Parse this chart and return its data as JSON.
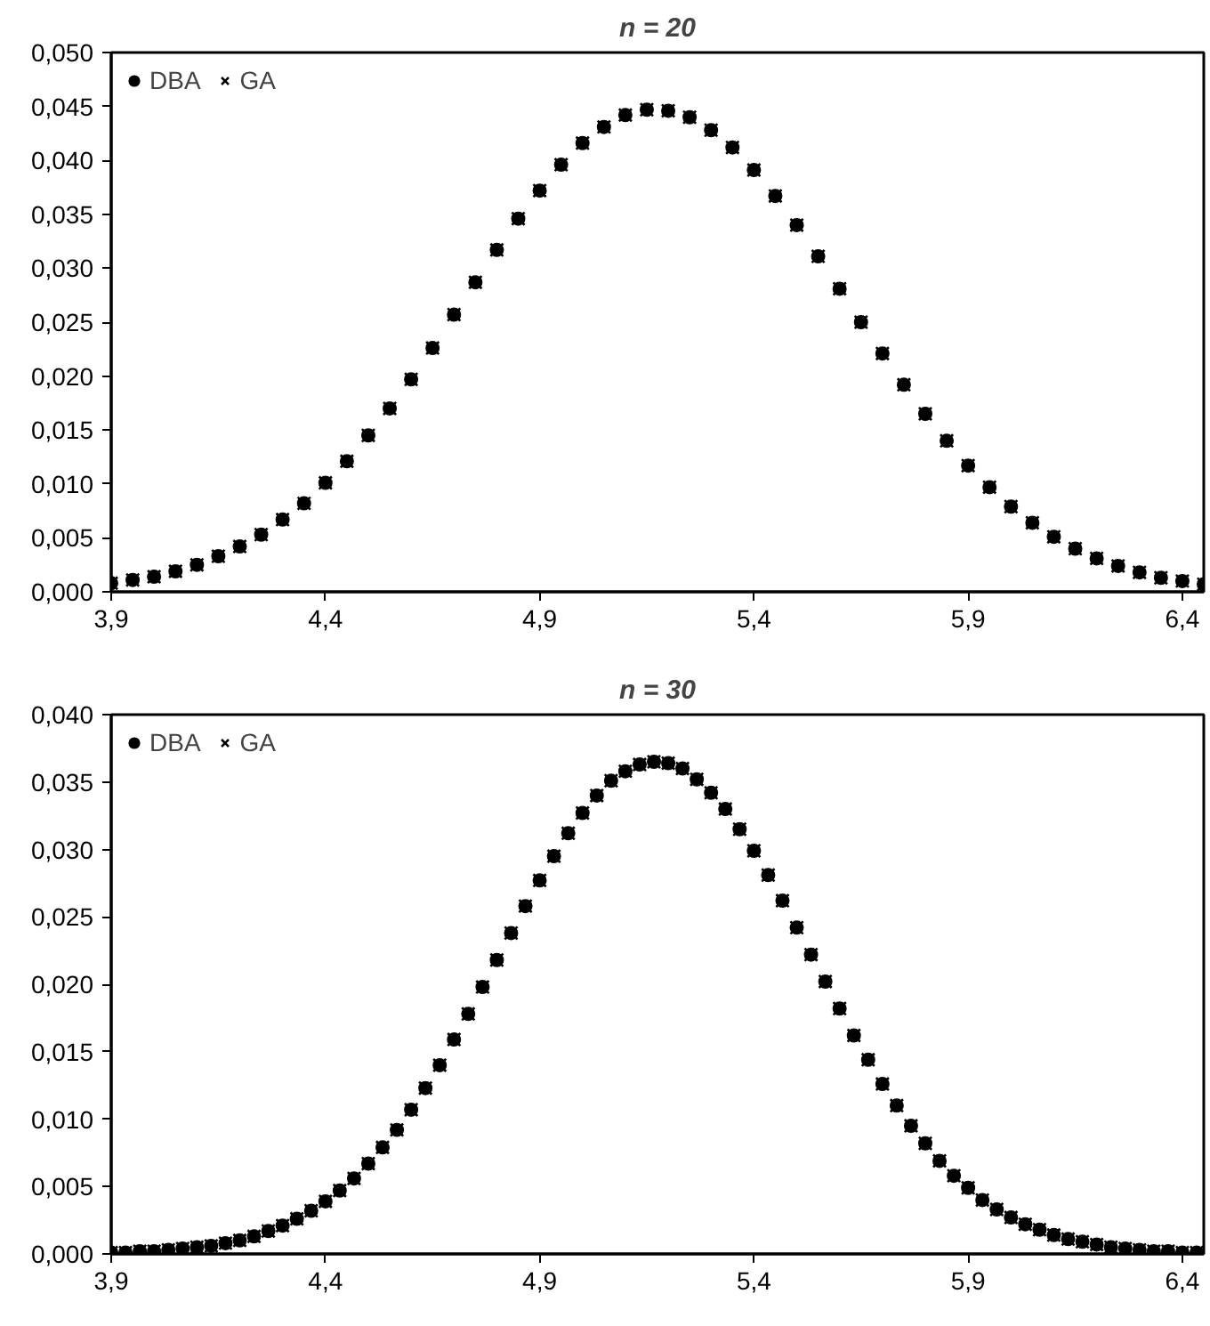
{
  "chart_data": [
    {
      "type": "scatter",
      "title": "n = 20",
      "legend": "top left",
      "grid": false,
      "xlim": [
        3.9,
        6.45
      ],
      "ylim": [
        0,
        0.05
      ],
      "xticks": [
        {
          "value": 3.9,
          "label": "3,9"
        },
        {
          "value": 4.4,
          "label": "4,4"
        },
        {
          "value": 4.9,
          "label": "4,9"
        },
        {
          "value": 5.4,
          "label": "5,4"
        },
        {
          "value": 5.9,
          "label": "5,9"
        },
        {
          "value": 6.4,
          "label": "6,4"
        }
      ],
      "yticks": [
        {
          "value": 0,
          "label": "0,000"
        },
        {
          "value": 0.005,
          "label": "0,005"
        },
        {
          "value": 0.01,
          "label": "0,010"
        },
        {
          "value": 0.015,
          "label": "0,015"
        },
        {
          "value": 0.02,
          "label": "0,020"
        },
        {
          "value": 0.025,
          "label": "0,025"
        },
        {
          "value": 0.03,
          "label": "0,030"
        },
        {
          "value": 0.035,
          "label": "0,035"
        },
        {
          "value": 0.04,
          "label": "0,040"
        },
        {
          "value": 0.045,
          "label": "0,045"
        },
        {
          "value": 0.05,
          "label": "0,050"
        }
      ],
      "x": [
        3.9,
        3.95,
        4.0,
        4.05,
        4.1,
        4.15,
        4.2,
        4.25,
        4.3,
        4.35,
        4.4,
        4.45,
        4.5,
        4.55,
        4.6,
        4.65,
        4.7,
        4.75,
        4.8,
        4.85,
        4.9,
        4.95,
        5.0,
        5.05,
        5.1,
        5.15,
        5.2,
        5.25,
        5.3,
        5.35,
        5.4,
        5.45,
        5.5,
        5.55,
        5.6,
        5.65,
        5.7,
        5.75,
        5.8,
        5.85,
        5.9,
        5.95,
        6.0,
        6.05,
        6.1,
        6.15,
        6.2,
        6.25,
        6.3,
        6.35,
        6.4,
        6.45
      ],
      "series": [
        {
          "name": "DBA",
          "color": "#000000",
          "marker": "circle",
          "values": [
            0.0008,
            0.0011,
            0.0014,
            0.0019,
            0.0025,
            0.0033,
            0.0042,
            0.0053,
            0.0067,
            0.0082,
            0.0101,
            0.0121,
            0.0145,
            0.017,
            0.0197,
            0.0226,
            0.0257,
            0.0287,
            0.0317,
            0.0346,
            0.0372,
            0.0396,
            0.0416,
            0.0431,
            0.0442,
            0.0447,
            0.0446,
            0.044,
            0.0428,
            0.0412,
            0.0391,
            0.0367,
            0.034,
            0.0311,
            0.0281,
            0.025,
            0.0221,
            0.0192,
            0.0165,
            0.014,
            0.0117,
            0.0097,
            0.0079,
            0.0064,
            0.0051,
            0.004,
            0.0031,
            0.0024,
            0.0018,
            0.0013,
            0.001,
            0.0007
          ]
        },
        {
          "name": "GA",
          "color": "#000000",
          "marker": "cross",
          "values": [
            0.0008,
            0.0011,
            0.0014,
            0.0019,
            0.0025,
            0.0033,
            0.0042,
            0.0053,
            0.0067,
            0.0082,
            0.0101,
            0.0121,
            0.0145,
            0.017,
            0.0197,
            0.0226,
            0.0257,
            0.0287,
            0.0317,
            0.0346,
            0.0372,
            0.0396,
            0.0416,
            0.0431,
            0.0442,
            0.0447,
            0.0446,
            0.044,
            0.0428,
            0.0412,
            0.0391,
            0.0367,
            0.034,
            0.0311,
            0.0281,
            0.025,
            0.0221,
            0.0192,
            0.0165,
            0.014,
            0.0117,
            0.0097,
            0.0079,
            0.0064,
            0.0051,
            0.004,
            0.0031,
            0.0024,
            0.0018,
            0.0013,
            0.001,
            0.0007
          ]
        }
      ]
    },
    {
      "type": "scatter",
      "title": "n = 30",
      "legend": "top left",
      "grid": false,
      "xlim": [
        3.9,
        6.45
      ],
      "ylim": [
        0,
        0.04
      ],
      "xticks": [
        {
          "value": 3.9,
          "label": "3,9"
        },
        {
          "value": 4.4,
          "label": "4,4"
        },
        {
          "value": 4.9,
          "label": "4,9"
        },
        {
          "value": 5.4,
          "label": "5,4"
        },
        {
          "value": 5.9,
          "label": "5,9"
        },
        {
          "value": 6.4,
          "label": "6,4"
        }
      ],
      "yticks": [
        {
          "value": 0,
          "label": "0,000"
        },
        {
          "value": 0.005,
          "label": "0,005"
        },
        {
          "value": 0.01,
          "label": "0,010"
        },
        {
          "value": 0.015,
          "label": "0,015"
        },
        {
          "value": 0.02,
          "label": "0,020"
        },
        {
          "value": 0.025,
          "label": "0,025"
        },
        {
          "value": 0.03,
          "label": "0,030"
        },
        {
          "value": 0.035,
          "label": "0,035"
        },
        {
          "value": 0.04,
          "label": "0,040"
        }
      ],
      "x": [
        3.9,
        3.9333,
        3.9667,
        4.0,
        4.0333,
        4.0667,
        4.1,
        4.1333,
        4.1667,
        4.2,
        4.2333,
        4.2667,
        4.3,
        4.3333,
        4.3667,
        4.4,
        4.4333,
        4.4667,
        4.5,
        4.5333,
        4.5667,
        4.6,
        4.6333,
        4.6667,
        4.7,
        4.7333,
        4.7667,
        4.8,
        4.8333,
        4.8667,
        4.9,
        4.9333,
        4.9667,
        5.0,
        5.0333,
        5.0667,
        5.1,
        5.1333,
        5.1667,
        5.2,
        5.2333,
        5.2667,
        5.3,
        5.3333,
        5.3667,
        5.4,
        5.4333,
        5.4667,
        5.5,
        5.5333,
        5.5667,
        5.6,
        5.6333,
        5.6667,
        5.7,
        5.7333,
        5.7667,
        5.8,
        5.8333,
        5.8667,
        5.9,
        5.9333,
        5.9667,
        6.0,
        6.0333,
        6.0667,
        6.1,
        6.1333,
        6.1667,
        6.2,
        6.2333,
        6.2667,
        6.3,
        6.3333,
        6.3667,
        6.4,
        6.4333
      ],
      "series": [
        {
          "name": "DBA",
          "color": "#000000",
          "marker": "circle",
          "values": [
            0.0001,
            0.0001,
            0.0002,
            0.0002,
            0.0003,
            0.0004,
            0.0005,
            0.0006,
            0.0008,
            0.001,
            0.0013,
            0.0017,
            0.0021,
            0.0026,
            0.0032,
            0.0039,
            0.0047,
            0.0056,
            0.0067,
            0.0079,
            0.0092,
            0.0107,
            0.0123,
            0.014,
            0.0159,
            0.0178,
            0.0198,
            0.0218,
            0.0238,
            0.0258,
            0.0277,
            0.0295,
            0.0312,
            0.0327,
            0.034,
            0.0351,
            0.0358,
            0.0363,
            0.0365,
            0.0364,
            0.036,
            0.0352,
            0.0342,
            0.033,
            0.0315,
            0.0299,
            0.0281,
            0.0262,
            0.0242,
            0.0222,
            0.0202,
            0.0182,
            0.0162,
            0.0144,
            0.0126,
            0.011,
            0.0095,
            0.0082,
            0.0069,
            0.0058,
            0.0049,
            0.004,
            0.0033,
            0.0027,
            0.0022,
            0.0018,
            0.0014,
            0.0011,
            0.0009,
            0.0007,
            0.0005,
            0.0004,
            0.0003,
            0.0002,
            0.0002,
            0.0001,
            0.0001
          ]
        },
        {
          "name": "GA",
          "color": "#000000",
          "marker": "cross",
          "values": [
            0.0001,
            0.0001,
            0.0002,
            0.0002,
            0.0003,
            0.0004,
            0.0005,
            0.0006,
            0.0008,
            0.001,
            0.0013,
            0.0017,
            0.0021,
            0.0026,
            0.0032,
            0.0039,
            0.0047,
            0.0056,
            0.0067,
            0.0079,
            0.0092,
            0.0107,
            0.0123,
            0.014,
            0.0159,
            0.0178,
            0.0198,
            0.0218,
            0.0238,
            0.0258,
            0.0277,
            0.0295,
            0.0312,
            0.0327,
            0.034,
            0.0351,
            0.0358,
            0.0363,
            0.0365,
            0.0364,
            0.036,
            0.0352,
            0.0342,
            0.033,
            0.0315,
            0.0299,
            0.0281,
            0.0262,
            0.0242,
            0.0222,
            0.0202,
            0.0182,
            0.0162,
            0.0144,
            0.0126,
            0.011,
            0.0095,
            0.0082,
            0.0069,
            0.0058,
            0.0049,
            0.004,
            0.0033,
            0.0027,
            0.0022,
            0.0018,
            0.0014,
            0.0011,
            0.0009,
            0.0007,
            0.0005,
            0.0004,
            0.0003,
            0.0002,
            0.0002,
            0.0001,
            0.0001
          ]
        }
      ]
    }
  ]
}
